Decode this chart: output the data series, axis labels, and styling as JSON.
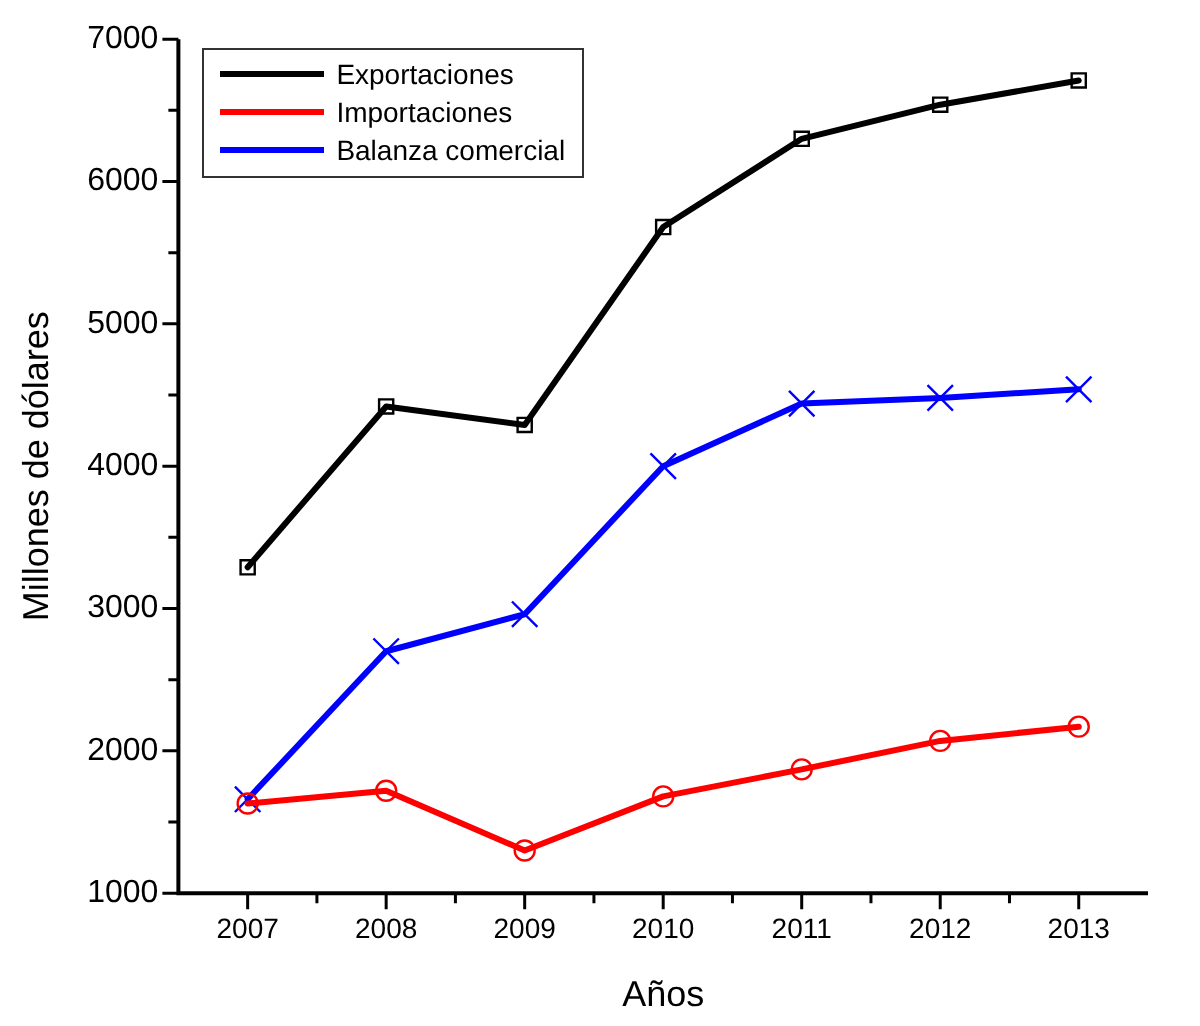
{
  "chart_data": {
    "type": "line",
    "xlabel": "Años",
    "ylabel": "Millones de dólares",
    "x": [
      2007,
      2008,
      2009,
      2010,
      2011,
      2012,
      2013
    ],
    "xlim": [
      2006.5,
      2013.5
    ],
    "xticks": [
      2007,
      2008,
      2009,
      2010,
      2011,
      2012,
      2013
    ],
    "ylim": [
      1000,
      7000
    ],
    "yticks": [
      1000,
      2000,
      3000,
      4000,
      5000,
      6000,
      7000
    ],
    "grid": false,
    "legend": "top left",
    "line_style": "solid",
    "series": [
      {
        "name": "Exportaciones",
        "color": "#000000",
        "marker": "square",
        "values": [
          3290,
          4420,
          4290,
          5680,
          6300,
          6540,
          6710
        ]
      },
      {
        "name": "Importaciones",
        "color": "#ff0000",
        "marker": "circle",
        "values": [
          1630,
          1720,
          1300,
          1680,
          1870,
          2070,
          2170
        ]
      },
      {
        "name": "Balanza comercial",
        "color": "#0000ff",
        "marker": "cross",
        "values": [
          1660,
          2700,
          2960,
          4000,
          4440,
          4480,
          4540
        ]
      }
    ]
  }
}
